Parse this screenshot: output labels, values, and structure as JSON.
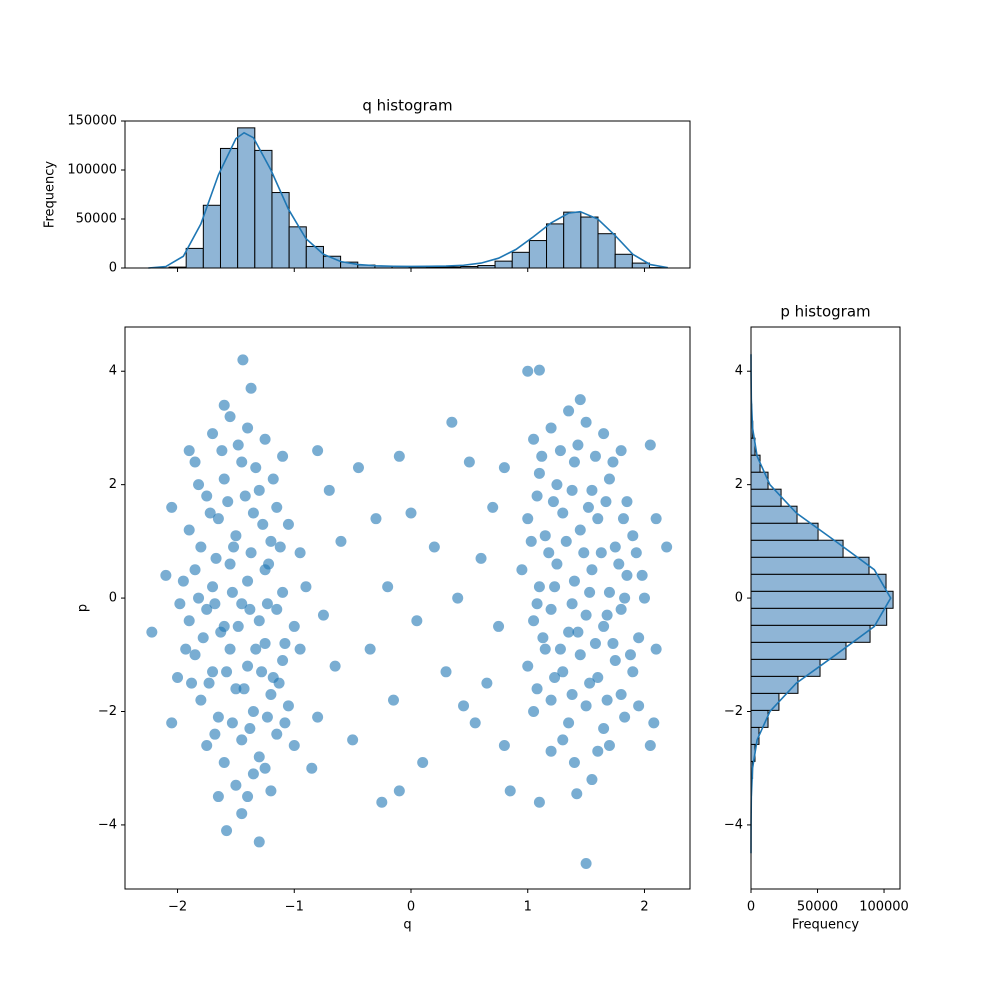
{
  "chart_data": [
    {
      "type": "histogram",
      "title": "q histogram",
      "ylabel": "Frequency",
      "bins": [
        -2.22,
        -2.073,
        -1.926,
        -1.779,
        -1.632,
        -1.485,
        -1.338,
        -1.191,
        -1.044,
        -0.897,
        -0.75,
        -0.603,
        -0.456,
        -0.309,
        -0.162,
        -0.015,
        0.132,
        0.279,
        0.426,
        0.573,
        0.72,
        0.867,
        1.014,
        1.161,
        1.308,
        1.455,
        1.602,
        1.749,
        1.896,
        2.043,
        2.19
      ],
      "counts": [
        100,
        900,
        20000,
        64000,
        122000,
        143000,
        120000,
        77000,
        42000,
        22000,
        12000,
        6000,
        3000,
        2000,
        1500,
        1200,
        1000,
        1000,
        1500,
        2500,
        7000,
        16000,
        28000,
        45000,
        57000,
        52000,
        35000,
        14000,
        5000,
        400
      ],
      "color": "#8fb5d6",
      "edgecolor": "#000000",
      "kde": {
        "color": "#1f77b4",
        "x": [
          -2.25,
          -2.1,
          -1.95,
          -1.8,
          -1.65,
          -1.5,
          -1.43,
          -1.35,
          -1.2,
          -1.05,
          -0.9,
          -0.75,
          -0.6,
          -0.45,
          -0.3,
          -0.15,
          0,
          0.15,
          0.3,
          0.45,
          0.6,
          0.75,
          0.9,
          1.05,
          1.2,
          1.35,
          1.45,
          1.6,
          1.75,
          1.9,
          2.05,
          2.2
        ],
        "values": [
          0,
          1500,
          12000,
          45000,
          95000,
          132000,
          138000,
          133000,
          100000,
          60000,
          30000,
          14000,
          6500,
          3500,
          2300,
          1800,
          1600,
          1700,
          2000,
          2800,
          5000,
          10000,
          19000,
          32000,
          46000,
          56000,
          57500,
          50000,
          33000,
          14000,
          3500,
          400
        ]
      },
      "xlim": [
        -2.45,
        2.39
      ],
      "ylim": [
        0,
        150000
      ],
      "xticks": [
        -2,
        -1,
        0,
        1,
        2
      ],
      "yticks": [
        0,
        50000,
        100000,
        150000
      ]
    },
    {
      "type": "scatter",
      "xlabel": "q",
      "ylabel": "p",
      "color": "#1f77b4",
      "x": [
        -1.85,
        -1.7,
        -1.55,
        -1.4,
        -1.25,
        -1.1,
        -1.75,
        -1.6,
        -1.45,
        -1.3,
        -1.15,
        -1.9,
        -1.8,
        -1.65,
        -1.5,
        -1.35,
        -1.2,
        -1.05,
        -0.95,
        -1.95,
        -1.85,
        -1.7,
        -1.55,
        -1.4,
        -1.25,
        -1.1,
        -0.9,
        -1.9,
        -1.75,
        -1.6,
        -1.45,
        -1.3,
        -1.15,
        -1.0,
        -1.85,
        -1.7,
        -1.55,
        -1.4,
        -1.25,
        -1.1,
        -0.95,
        -1.8,
        -1.65,
        -1.5,
        -1.35,
        -1.2,
        -1.05,
        -1.75,
        -1.6,
        -1.45,
        -1.3,
        -1.15,
        -1.0,
        -1.5,
        -1.35,
        -1.65,
        -1.2,
        -1.45,
        -1.3,
        -1.58,
        -1.44,
        -1.37,
        -1.6,
        -1.9,
        -2.05,
        -2.1,
        -2.22,
        -2.0,
        -2.05,
        -0.85,
        -0.8,
        -0.7,
        -0.6,
        -0.75,
        -0.65,
        -0.8,
        -0.5,
        -0.45,
        -0.3,
        -0.2,
        -0.35,
        -0.15,
        -0.1,
        0.0,
        0.05,
        0.1,
        -0.25,
        -0.1,
        0.2,
        0.3,
        1.05,
        1.2,
        1.35,
        1.5,
        1.65,
        1.8,
        1.1,
        1.25,
        1.4,
        1.55,
        1.7,
        1.85,
        1.0,
        1.15,
        1.3,
        1.45,
        1.6,
        1.75,
        1.9,
        0.95,
        1.1,
        1.25,
        1.4,
        1.55,
        1.7,
        1.85,
        2.0,
        1.05,
        1.2,
        1.35,
        1.5,
        1.65,
        1.8,
        1.95,
        1.0,
        1.15,
        1.3,
        1.45,
        1.6,
        1.75,
        1.9,
        1.05,
        1.2,
        1.35,
        1.5,
        1.65,
        1.8,
        1.2,
        1.4,
        1.55,
        1.7,
        1.42,
        1.1,
        1.5,
        1.0,
        1.1,
        1.45,
        2.05,
        2.1,
        2.19,
        2.1,
        2.08,
        2.05,
        0.85,
        0.8,
        0.7,
        0.6,
        0.75,
        0.65,
        0.8,
        0.5,
        0.45,
        0.35,
        0.55,
        0.4,
        -1.62,
        -1.48,
        -1.33,
        -1.18,
        -1.72,
        -1.57,
        -1.42,
        -1.27,
        -1.12,
        -1.67,
        -1.52,
        -1.37,
        -1.22,
        -1.82,
        -1.68,
        -1.53,
        -1.38,
        -1.23,
        -1.08,
        -1.78,
        -1.63,
        -1.48,
        -1.33,
        -1.18,
        -1.73,
        -1.58,
        -1.43,
        -1.28,
        -1.13,
        -1.68,
        -1.53,
        -1.38,
        -1.23,
        -1.08,
        -1.88,
        -1.93,
        -1.98,
        -1.82,
        -1.4,
        -1.25,
        1.12,
        1.28,
        1.43,
        1.58,
        1.73,
        1.08,
        1.22,
        1.38,
        1.52,
        1.67,
        1.82,
        1.03,
        1.18,
        1.33,
        1.48,
        1.63,
        1.78,
        1.93,
        1.08,
        1.23,
        1.38,
        1.53,
        1.68,
        1.83,
        1.98,
        1.13,
        1.28,
        1.43,
        1.58,
        1.73,
        1.88,
        1.08,
        1.23,
        1.38,
        1.53,
        1.68,
        1.83,
        1.3,
        1.6,
        1.95
      ],
      "y": [
        2.4,
        2.9,
        3.2,
        3.0,
        2.8,
        2.5,
        1.8,
        2.1,
        2.4,
        1.9,
        1.6,
        1.2,
        0.9,
        1.4,
        1.1,
        1.5,
        1.0,
        1.3,
        0.8,
        0.3,
        0.5,
        0.2,
        0.6,
        0.3,
        0.5,
        0.1,
        0.2,
        -0.4,
        -0.2,
        -0.5,
        -0.1,
        -0.4,
        -0.2,
        -0.5,
        -1.0,
        -1.3,
        -0.9,
        -1.2,
        -0.8,
        -1.1,
        -0.9,
        -1.8,
        -2.1,
        -1.6,
        -2.0,
        -1.7,
        -1.9,
        -2.6,
        -2.9,
        -2.5,
        -2.8,
        -2.4,
        -2.6,
        -3.3,
        -3.1,
        -3.5,
        -3.4,
        -3.8,
        -4.3,
        -4.1,
        4.2,
        3.7,
        3.4,
        2.6,
        1.6,
        0.4,
        -0.6,
        -1.4,
        -2.2,
        -3.0,
        2.6,
        1.9,
        1.0,
        -0.3,
        -1.2,
        -2.1,
        -2.5,
        2.3,
        1.4,
        0.2,
        -0.9,
        -1.8,
        2.5,
        1.5,
        -0.4,
        -2.9,
        -3.6,
        -3.4,
        0.9,
        -1.3,
        2.8,
        3.0,
        3.3,
        3.1,
        2.9,
        2.6,
        2.2,
        2.0,
        2.4,
        1.9,
        2.1,
        1.7,
        1.4,
        1.1,
        1.5,
        1.2,
        1.4,
        0.9,
        1.1,
        0.5,
        0.2,
        0.6,
        0.3,
        0.5,
        0.1,
        0.4,
        0.0,
        -0.4,
        -0.2,
        -0.6,
        -0.3,
        -0.5,
        -0.2,
        -0.7,
        -1.2,
        -0.9,
        -1.3,
        -1.0,
        -1.4,
        -1.1,
        -1.3,
        -2.0,
        -1.8,
        -2.2,
        -1.9,
        -2.3,
        -1.7,
        -2.7,
        -2.9,
        -3.2,
        -2.6,
        -3.45,
        -3.6,
        -4.68,
        4.0,
        4.02,
        3.5,
        2.7,
        1.4,
        0.9,
        -0.9,
        -2.2,
        -2.6,
        -3.4,
        2.3,
        1.6,
        0.7,
        -0.5,
        -1.5,
        -2.6,
        2.4,
        -1.9,
        3.1,
        -2.2,
        0.0,
        2.6,
        2.7,
        2.3,
        2.1,
        1.5,
        1.7,
        1.8,
        1.3,
        0.9,
        0.7,
        0.9,
        0.8,
        0.6,
        0.0,
        -0.1,
        0.1,
        -0.2,
        -0.1,
        -0.8,
        -0.7,
        -0.6,
        -0.5,
        -0.9,
        -1.4,
        -1.5,
        -1.3,
        -1.6,
        -1.3,
        -1.5,
        -2.4,
        -2.2,
        -2.3,
        -2.1,
        -2.2,
        -1.5,
        -0.9,
        -0.1,
        2.0,
        -3.5,
        -3.0,
        2.5,
        2.6,
        2.7,
        2.5,
        2.4,
        1.8,
        1.7,
        1.9,
        1.6,
        1.7,
        1.4,
        1.0,
        0.8,
        1.0,
        0.8,
        0.8,
        0.6,
        0.8,
        -0.1,
        0.2,
        -0.1,
        0.1,
        -0.3,
        0.0,
        0.4,
        -0.7,
        -0.9,
        -0.6,
        -0.8,
        -0.8,
        -1.0,
        -1.6,
        -1.4,
        -1.7,
        -1.5,
        -1.8,
        -2.1,
        -2.5,
        -2.7,
        -1.9
      ],
      "xlim": [
        -2.45,
        2.39
      ],
      "ylim": [
        -5.13,
        4.78
      ],
      "xticks": [
        {
          "value": -2,
          "label": "−2"
        },
        {
          "value": -1,
          "label": "−1"
        },
        0,
        1,
        2
      ],
      "yticks": [
        {
          "value": -4,
          "label": "−4"
        },
        {
          "value": -2,
          "label": "−2"
        },
        0,
        2,
        4
      ]
    },
    {
      "type": "histogram",
      "orientation": "horizontal",
      "title": "p histogram",
      "xlabel": "Frequency",
      "bins": [
        -4.68,
        -4.38,
        -4.08,
        -3.78,
        -3.48,
        -3.18,
        -2.88,
        -2.58,
        -2.28,
        -1.98,
        -1.68,
        -1.38,
        -1.08,
        -0.78,
        -0.48,
        -0.18,
        0.12,
        0.42,
        0.72,
        1.02,
        1.32,
        1.62,
        1.92,
        2.22,
        2.52,
        2.82,
        3.12,
        3.42,
        3.72,
        4.02,
        4.32
      ],
      "counts": [
        5,
        10,
        40,
        120,
        400,
        1200,
        3000,
        6000,
        12800,
        21000,
        35300,
        51900,
        71400,
        89500,
        102000,
        106800,
        101500,
        88700,
        69200,
        50400,
        34600,
        22600,
        12800,
        6800,
        3000,
        1300,
        500,
        150,
        50,
        10
      ],
      "color": "#8fb5d6",
      "edgecolor": "#000000",
      "kde": {
        "color": "#1f77b4",
        "x": [
          -4.5,
          -4,
          -3.5,
          -3,
          -2.5,
          -2,
          -1.5,
          -1,
          -0.5,
          0,
          0.5,
          1,
          1.5,
          2,
          2.5,
          3,
          3.5,
          4,
          4.3
        ],
        "values": [
          4,
          35,
          230,
          1170,
          4600,
          14200,
          34100,
          63700,
          92700,
          105000,
          92700,
          63700,
          34100,
          14200,
          4600,
          1170,
          230,
          35,
          10
        ]
      },
      "xlim": [
        0,
        112000
      ],
      "ylim": [
        -5.13,
        4.78
      ],
      "xticks": [
        0,
        50000,
        100000
      ],
      "yticks": [
        {
          "value": -4,
          "label": "−4"
        },
        {
          "value": -2,
          "label": "−2"
        },
        0,
        2,
        4
      ]
    }
  ]
}
